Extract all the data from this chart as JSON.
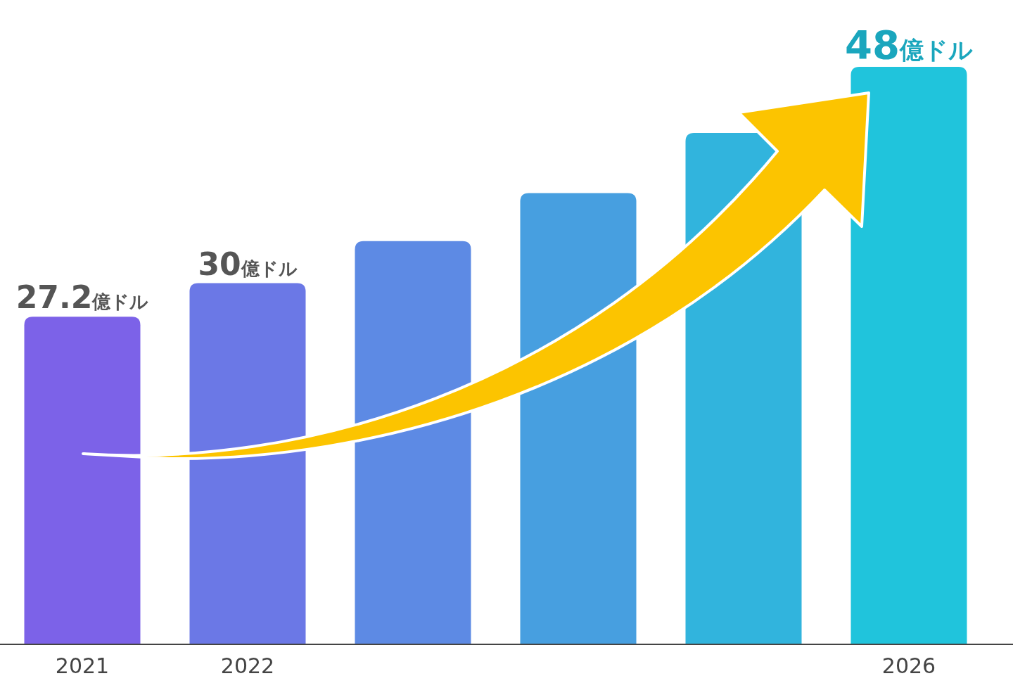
{
  "chart_data": {
    "type": "bar",
    "categories": [
      "2021",
      "2022",
      null,
      null,
      null,
      "2026"
    ],
    "values": [
      27.2,
      30,
      33.5,
      37.5,
      42.5,
      48
    ],
    "colors": [
      "#7c62e8",
      "#6b78e6",
      "#5d8ae4",
      "#479fe0",
      "#31b4dd",
      "#20c4dc"
    ],
    "value_labels": [
      "27.2億ドル",
      "30億ドル",
      null,
      null,
      null,
      "48億ドル"
    ]
  }
}
